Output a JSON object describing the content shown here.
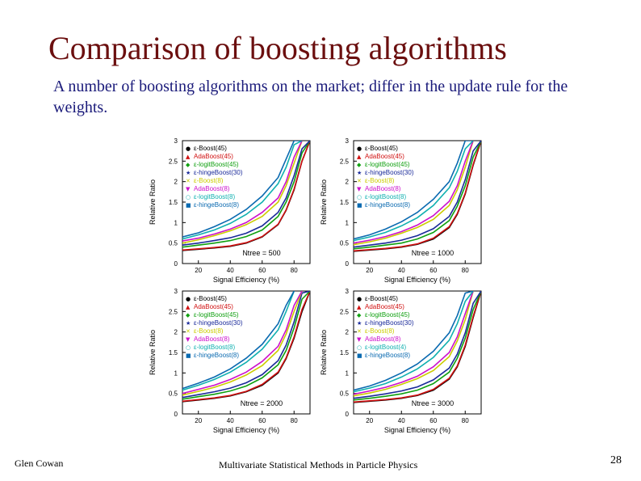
{
  "slide": {
    "title": "Comparison of boosting algorithms",
    "subtitle": "A number of boosting algorithms on the market; differ in the update rule for the weights.",
    "footer_left": "Glen Cowan",
    "footer_center": "Multivariate Statistical Methods in Particle Physics",
    "page_number": "28"
  },
  "chart_data": [
    {
      "type": "line",
      "panel_label": "Ntree = 500",
      "xlabel": "Signal Efficiency (%)",
      "ylabel": "Relative Ratio",
      "xlim": [
        10,
        90
      ],
      "ylim": [
        0,
        3
      ],
      "xticks": [
        "20",
        "40",
        "60",
        "80"
      ],
      "yticks": [
        "0",
        "0.5",
        "1",
        "1.5",
        "2",
        "2.5",
        "3"
      ],
      "legend_position": "top-left",
      "series": [
        {
          "name": "ε-Boost(45)",
          "color": "#000000",
          "marker": "●",
          "x": [
            10,
            20,
            30,
            40,
            50,
            60,
            70,
            75,
            80,
            85,
            90
          ],
          "y": [
            0.32,
            0.35,
            0.38,
            0.42,
            0.5,
            0.65,
            0.95,
            1.3,
            1.8,
            2.5,
            3.0
          ]
        },
        {
          "name": "AdaBoost(45)",
          "color": "#d01010",
          "marker": "▲",
          "x": [
            10,
            20,
            30,
            40,
            50,
            60,
            70,
            75,
            80,
            85,
            90
          ],
          "y": [
            0.33,
            0.36,
            0.39,
            0.43,
            0.51,
            0.66,
            0.96,
            1.31,
            1.82,
            2.5,
            3.0
          ]
        },
        {
          "name": "ε-logitBoost(45)",
          "color": "#10a010",
          "marker": "◆",
          "x": [
            10,
            20,
            30,
            40,
            50,
            60,
            70,
            75,
            80,
            85,
            90
          ],
          "y": [
            0.4,
            0.45,
            0.5,
            0.56,
            0.66,
            0.82,
            1.15,
            1.5,
            2.0,
            2.7,
            3.0
          ]
        },
        {
          "name": "ε-hingeBoost(30)",
          "color": "#1a2a9a",
          "marker": "★",
          "x": [
            10,
            20,
            30,
            40,
            50,
            60,
            70,
            75,
            80,
            85,
            90
          ],
          "y": [
            0.45,
            0.5,
            0.56,
            0.63,
            0.74,
            0.92,
            1.25,
            1.6,
            2.15,
            2.8,
            3.0
          ]
        },
        {
          "name": "ε-Boost(8)",
          "color": "#cccc00",
          "marker": "✕",
          "x": [
            10,
            20,
            30,
            40,
            50,
            60,
            70,
            75,
            80,
            85
          ],
          "y": [
            0.5,
            0.58,
            0.68,
            0.8,
            0.95,
            1.15,
            1.5,
            1.9,
            2.45,
            3.0
          ]
        },
        {
          "name": "AdaBoost(8)",
          "color": "#cc10cc",
          "marker": "▼",
          "x": [
            10,
            20,
            30,
            40,
            50,
            60,
            70,
            75,
            80,
            85
          ],
          "y": [
            0.55,
            0.62,
            0.72,
            0.84,
            1.0,
            1.25,
            1.6,
            2.0,
            2.6,
            3.0
          ]
        },
        {
          "name": "ε-logitBoost(8)",
          "color": "#10b0b0",
          "marker": "○",
          "x": [
            10,
            20,
            30,
            40,
            50,
            60,
            70,
            75,
            80,
            85
          ],
          "y": [
            0.6,
            0.7,
            0.82,
            0.98,
            1.2,
            1.5,
            1.95,
            2.35,
            2.9,
            3.0
          ]
        },
        {
          "name": "ε-hingeBoost(8)",
          "color": "#0a6ab0",
          "marker": "■",
          "x": [
            10,
            20,
            30,
            40,
            50,
            60,
            70,
            75,
            80,
            85
          ],
          "y": [
            0.65,
            0.75,
            0.9,
            1.08,
            1.32,
            1.65,
            2.1,
            2.55,
            3.0,
            3.0
          ]
        }
      ]
    },
    {
      "type": "line",
      "panel_label": "Ntree = 1000",
      "xlabel": "Signal Efficiency (%)",
      "ylabel": "Relative Ratio",
      "xlim": [
        10,
        90
      ],
      "ylim": [
        0,
        3
      ],
      "xticks": [
        "20",
        "40",
        "60",
        "80"
      ],
      "yticks": [
        "0",
        "0.5",
        "1",
        "1.5",
        "2",
        "2.5",
        "3"
      ],
      "legend_position": "top-left",
      "series": [
        {
          "name": "ε-Boost(45)",
          "color": "#000000",
          "marker": "●",
          "x": [
            10,
            20,
            30,
            40,
            50,
            60,
            70,
            75,
            80,
            85,
            90
          ],
          "y": [
            0.3,
            0.33,
            0.36,
            0.4,
            0.47,
            0.6,
            0.88,
            1.2,
            1.7,
            2.4,
            3.0
          ]
        },
        {
          "name": "AdaBoost(45)",
          "color": "#d01010",
          "marker": "▲",
          "x": [
            10,
            20,
            30,
            40,
            50,
            60,
            70,
            75,
            80,
            85,
            90
          ],
          "y": [
            0.31,
            0.34,
            0.37,
            0.41,
            0.48,
            0.62,
            0.9,
            1.22,
            1.72,
            2.42,
            3.0
          ]
        },
        {
          "name": "ε-logitBoost(45)",
          "color": "#10a010",
          "marker": "◆",
          "x": [
            10,
            20,
            30,
            40,
            50,
            60,
            70,
            75,
            80,
            85,
            90
          ],
          "y": [
            0.36,
            0.4,
            0.45,
            0.5,
            0.6,
            0.76,
            1.05,
            1.4,
            1.9,
            2.6,
            3.0
          ]
        },
        {
          "name": "ε-hingeBoost(30)",
          "color": "#1a2a9a",
          "marker": "★",
          "x": [
            10,
            20,
            30,
            40,
            50,
            60,
            70,
            75,
            80,
            85,
            90
          ],
          "y": [
            0.4,
            0.45,
            0.5,
            0.57,
            0.68,
            0.85,
            1.15,
            1.5,
            2.05,
            2.75,
            3.0
          ]
        },
        {
          "name": "ε-Boost(8)",
          "color": "#cccc00",
          "marker": "✕",
          "x": [
            10,
            20,
            30,
            40,
            50,
            60,
            70,
            75,
            80,
            85
          ],
          "y": [
            0.46,
            0.53,
            0.62,
            0.74,
            0.88,
            1.08,
            1.42,
            1.8,
            2.35,
            3.0
          ]
        },
        {
          "name": "AdaBoost(8)",
          "color": "#cc10cc",
          "marker": "▼",
          "x": [
            10,
            20,
            30,
            40,
            50,
            60,
            70,
            75,
            80,
            85
          ],
          "y": [
            0.5,
            0.57,
            0.66,
            0.78,
            0.94,
            1.17,
            1.52,
            1.9,
            2.5,
            3.0
          ]
        },
        {
          "name": "ε-logitBoost(8)",
          "color": "#10b0b0",
          "marker": "○",
          "x": [
            10,
            20,
            30,
            40,
            50,
            60,
            70,
            75,
            80,
            85
          ],
          "y": [
            0.56,
            0.65,
            0.76,
            0.92,
            1.12,
            1.42,
            1.85,
            2.25,
            2.8,
            3.0
          ]
        },
        {
          "name": "ε-hingeBoost(8)",
          "color": "#0a6ab0",
          "marker": "■",
          "x": [
            10,
            20,
            30,
            40,
            50,
            60,
            70,
            75,
            80,
            85
          ],
          "y": [
            0.6,
            0.7,
            0.84,
            1.02,
            1.25,
            1.57,
            2.0,
            2.45,
            3.0,
            3.0
          ]
        }
      ]
    },
    {
      "type": "line",
      "panel_label": "Ntree = 2000",
      "xlabel": "Signal Efficiency (%)",
      "ylabel": "Relative Ratio",
      "xlim": [
        10,
        90
      ],
      "ylim": [
        0,
        3
      ],
      "xticks": [
        "20",
        "40",
        "60",
        "80"
      ],
      "yticks": [
        "0",
        "0.5",
        "1",
        "1.5",
        "2",
        "2.5",
        "3"
      ],
      "legend_position": "top-left",
      "series": [
        {
          "name": "ε-Boost(45)",
          "color": "#000000",
          "marker": "●",
          "x": [
            10,
            20,
            30,
            40,
            50,
            60,
            70,
            75,
            80,
            85,
            90
          ],
          "y": [
            0.3,
            0.34,
            0.38,
            0.44,
            0.54,
            0.7,
            1.0,
            1.35,
            1.85,
            2.5,
            3.0
          ]
        },
        {
          "name": "AdaBoost(45)",
          "color": "#d01010",
          "marker": "▲",
          "x": [
            10,
            20,
            30,
            40,
            50,
            60,
            70,
            75,
            80,
            85,
            90
          ],
          "y": [
            0.31,
            0.35,
            0.39,
            0.45,
            0.55,
            0.72,
            1.02,
            1.37,
            1.88,
            2.55,
            3.0
          ]
        },
        {
          "name": "ε-logitBoost(45)",
          "color": "#10a010",
          "marker": "◆",
          "x": [
            10,
            20,
            30,
            40,
            50,
            60,
            70,
            75,
            80,
            85,
            90
          ],
          "y": [
            0.36,
            0.42,
            0.48,
            0.56,
            0.68,
            0.88,
            1.2,
            1.55,
            2.1,
            2.8,
            3.0
          ]
        },
        {
          "name": "ε-hingeBoost(30)",
          "color": "#1a2a9a",
          "marker": "★",
          "x": [
            10,
            20,
            30,
            40,
            50,
            60,
            70,
            75,
            80,
            85,
            90
          ],
          "y": [
            0.4,
            0.47,
            0.54,
            0.63,
            0.76,
            0.96,
            1.3,
            1.68,
            2.25,
            2.95,
            3.0
          ]
        },
        {
          "name": "ε-Boost(8)",
          "color": "#cccc00",
          "marker": "✕",
          "x": [
            10,
            20,
            30,
            40,
            50,
            60,
            70,
            75,
            80,
            85
          ],
          "y": [
            0.46,
            0.55,
            0.65,
            0.78,
            0.95,
            1.18,
            1.55,
            1.95,
            2.5,
            3.0
          ]
        },
        {
          "name": "AdaBoost(8)",
          "color": "#cc10cc",
          "marker": "▼",
          "x": [
            10,
            20,
            30,
            40,
            50,
            60,
            70,
            75,
            80,
            85
          ],
          "y": [
            0.5,
            0.6,
            0.7,
            0.84,
            1.02,
            1.28,
            1.65,
            2.05,
            2.65,
            3.0
          ]
        },
        {
          "name": "ε-logitBoost(8)",
          "color": "#10b0b0",
          "marker": "○",
          "x": [
            10,
            20,
            30,
            40,
            50,
            60,
            70,
            75,
            80
          ],
          "y": [
            0.58,
            0.7,
            0.84,
            1.02,
            1.26,
            1.58,
            2.05,
            2.5,
            3.0
          ]
        },
        {
          "name": "ε-hingeBoost(8)",
          "color": "#0a6ab0",
          "marker": "■",
          "x": [
            10,
            20,
            30,
            40,
            50,
            60,
            70,
            75,
            80
          ],
          "y": [
            0.62,
            0.75,
            0.9,
            1.1,
            1.36,
            1.7,
            2.2,
            2.65,
            3.0
          ]
        }
      ]
    },
    {
      "type": "line",
      "panel_label": "Ntree = 3000",
      "xlabel": "Signal Efficiency (%)",
      "ylabel": "Relative Ratio",
      "xlim": [
        10,
        90
      ],
      "ylim": [
        0,
        3
      ],
      "xticks": [
        "20",
        "40",
        "60",
        "80"
      ],
      "yticks": [
        "0",
        "0.5",
        "1",
        "1.5",
        "2",
        "2.5",
        "3"
      ],
      "legend_position": "top-left",
      "series": [
        {
          "name": "ε-Boost(45)",
          "color": "#000000",
          "marker": "●",
          "x": [
            10,
            20,
            30,
            40,
            50,
            60,
            70,
            75,
            80,
            85,
            90
          ],
          "y": [
            0.28,
            0.31,
            0.34,
            0.38,
            0.45,
            0.58,
            0.85,
            1.15,
            1.65,
            2.35,
            3.0
          ]
        },
        {
          "name": "AdaBoost(45)",
          "color": "#d01010",
          "marker": "▲",
          "x": [
            10,
            20,
            30,
            40,
            50,
            60,
            70,
            75,
            80,
            85,
            90
          ],
          "y": [
            0.29,
            0.32,
            0.35,
            0.39,
            0.46,
            0.6,
            0.87,
            1.17,
            1.68,
            2.38,
            3.0
          ]
        },
        {
          "name": "ε-logitBoost(45)",
          "color": "#10a010",
          "marker": "◆",
          "x": [
            10,
            20,
            30,
            40,
            50,
            60,
            70,
            75,
            80,
            85,
            90
          ],
          "y": [
            0.34,
            0.38,
            0.43,
            0.49,
            0.58,
            0.74,
            1.02,
            1.36,
            1.85,
            2.55,
            3.0
          ]
        },
        {
          "name": "ε-hingeBoost(30)",
          "color": "#1a2a9a",
          "marker": "★",
          "x": [
            10,
            20,
            30,
            40,
            50,
            60,
            70,
            75,
            80,
            85,
            90
          ],
          "y": [
            0.38,
            0.43,
            0.49,
            0.56,
            0.66,
            0.83,
            1.12,
            1.46,
            1.98,
            2.7,
            3.0
          ]
        },
        {
          "name": "ε-Boost(8)",
          "color": "#cccc00",
          "marker": "✕",
          "x": [
            10,
            20,
            30,
            40,
            50,
            60,
            70,
            75,
            80,
            85
          ],
          "y": [
            0.44,
            0.51,
            0.6,
            0.72,
            0.86,
            1.06,
            1.4,
            1.78,
            2.3,
            3.0
          ]
        },
        {
          "name": "AdaBoost(8)",
          "color": "#cc10cc",
          "marker": "▼",
          "x": [
            10,
            20,
            30,
            40,
            50,
            60,
            70,
            75,
            80,
            85
          ],
          "y": [
            0.48,
            0.56,
            0.65,
            0.77,
            0.92,
            1.15,
            1.5,
            1.88,
            2.45,
            3.0
          ]
        },
        {
          "name": "ε-logitBoost(4)",
          "color": "#10b0b0",
          "marker": "○",
          "x": [
            10,
            20,
            30,
            40,
            50,
            60,
            70,
            75,
            80,
            85
          ],
          "y": [
            0.54,
            0.63,
            0.74,
            0.9,
            1.1,
            1.38,
            1.8,
            2.2,
            2.75,
            3.0
          ]
        },
        {
          "name": "ε-hingeBoost(8)",
          "color": "#0a6ab0",
          "marker": "■",
          "x": [
            10,
            20,
            30,
            40,
            50,
            60,
            70,
            75,
            80,
            85
          ],
          "y": [
            0.58,
            0.68,
            0.82,
            1.0,
            1.22,
            1.53,
            1.98,
            2.4,
            2.95,
            3.0
          ]
        }
      ]
    }
  ]
}
